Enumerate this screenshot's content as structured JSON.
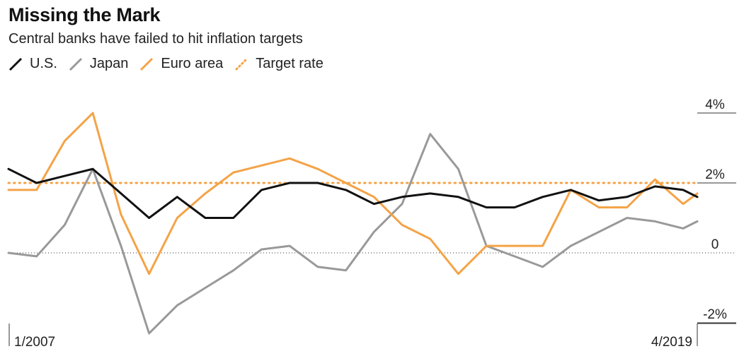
{
  "chart_data": {
    "type": "line",
    "title": "Missing the Mark",
    "subtitle": "Central banks have failed to hit inflation targets",
    "x_start": "2007-01",
    "x_end": "2019-04",
    "x_tick_labels": [
      "1/2007",
      "4/2019"
    ],
    "y_tick_labels": [
      "4%",
      "2%",
      "0",
      "-2%"
    ],
    "y_ticks": [
      4,
      2,
      0,
      -2
    ],
    "ylim": [
      -2.5,
      4.5
    ],
    "target_rate": 2.0,
    "legend_position": "top-left",
    "series": [
      {
        "name": "U.S.",
        "color": "#111111",
        "values": [
          [
            "2007-01",
            2.4
          ],
          [
            "2007-07",
            2.0
          ],
          [
            "2008-01",
            2.2
          ],
          [
            "2008-07",
            2.4
          ],
          [
            "2009-01",
            1.7
          ],
          [
            "2009-07",
            1.0
          ],
          [
            "2010-01",
            1.6
          ],
          [
            "2010-07",
            1.0
          ],
          [
            "2011-01",
            1.0
          ],
          [
            "2011-07",
            1.8
          ],
          [
            "2012-01",
            2.0
          ],
          [
            "2012-07",
            2.0
          ],
          [
            "2013-01",
            1.8
          ],
          [
            "2013-07",
            1.4
          ],
          [
            "2014-01",
            1.6
          ],
          [
            "2014-07",
            1.7
          ],
          [
            "2015-01",
            1.6
          ],
          [
            "2015-07",
            1.3
          ],
          [
            "2016-01",
            1.3
          ],
          [
            "2016-07",
            1.6
          ],
          [
            "2017-01",
            1.8
          ],
          [
            "2017-07",
            1.5
          ],
          [
            "2018-01",
            1.6
          ],
          [
            "2018-07",
            1.9
          ],
          [
            "2019-01",
            1.8
          ],
          [
            "2019-04",
            1.6
          ]
        ]
      },
      {
        "name": "Japan",
        "color": "#999999",
        "values": [
          [
            "2007-01",
            0.0
          ],
          [
            "2007-07",
            -0.1
          ],
          [
            "2008-01",
            0.8
          ],
          [
            "2008-07",
            2.4
          ],
          [
            "2009-01",
            0.2
          ],
          [
            "2009-07",
            -2.3
          ],
          [
            "2010-01",
            -1.5
          ],
          [
            "2010-07",
            -1.0
          ],
          [
            "2011-01",
            -0.5
          ],
          [
            "2011-07",
            0.1
          ],
          [
            "2012-01",
            0.2
          ],
          [
            "2012-07",
            -0.4
          ],
          [
            "2013-01",
            -0.5
          ],
          [
            "2013-07",
            0.6
          ],
          [
            "2014-01",
            1.4
          ],
          [
            "2014-07",
            3.4
          ],
          [
            "2015-01",
            2.4
          ],
          [
            "2015-07",
            0.2
          ],
          [
            "2016-01",
            -0.1
          ],
          [
            "2016-07",
            -0.4
          ],
          [
            "2017-01",
            0.2
          ],
          [
            "2017-07",
            0.6
          ],
          [
            "2018-01",
            1.0
          ],
          [
            "2018-07",
            0.9
          ],
          [
            "2019-01",
            0.7
          ],
          [
            "2019-04",
            0.9
          ]
        ]
      },
      {
        "name": "Euro area",
        "color": "#F4A347",
        "values": [
          [
            "2007-01",
            1.8
          ],
          [
            "2007-07",
            1.8
          ],
          [
            "2008-01",
            3.2
          ],
          [
            "2008-07",
            4.0
          ],
          [
            "2009-01",
            1.1
          ],
          [
            "2009-07",
            -0.6
          ],
          [
            "2010-01",
            1.0
          ],
          [
            "2010-07",
            1.7
          ],
          [
            "2011-01",
            2.3
          ],
          [
            "2011-07",
            2.5
          ],
          [
            "2012-01",
            2.7
          ],
          [
            "2012-07",
            2.4
          ],
          [
            "2013-01",
            2.0
          ],
          [
            "2013-07",
            1.6
          ],
          [
            "2014-01",
            0.8
          ],
          [
            "2014-07",
            0.4
          ],
          [
            "2015-01",
            -0.6
          ],
          [
            "2015-07",
            0.2
          ],
          [
            "2016-01",
            0.2
          ],
          [
            "2016-07",
            0.2
          ],
          [
            "2017-01",
            1.8
          ],
          [
            "2017-07",
            1.3
          ],
          [
            "2018-01",
            1.3
          ],
          [
            "2018-07",
            2.1
          ],
          [
            "2019-01",
            1.4
          ],
          [
            "2019-04",
            1.7
          ]
        ]
      }
    ]
  }
}
